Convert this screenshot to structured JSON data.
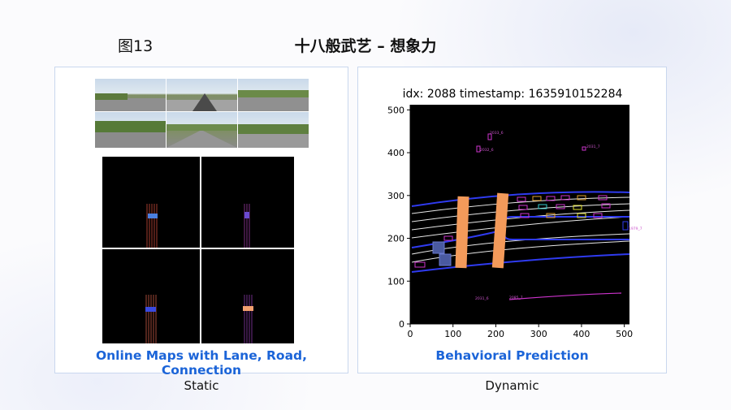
{
  "header": {
    "figure_label": "图13",
    "title": "十八般武艺 – 想象力"
  },
  "left_panel": {
    "caption": "Online Maps with Lane, Road, Connection",
    "footer": "Static"
  },
  "right_panel": {
    "caption": "Behavioral Prediction",
    "footer": "Dynamic",
    "plot_title": "idx: 2088   timestamp: 1635910152284",
    "x_ticks": [
      "0",
      "100",
      "200",
      "300",
      "400",
      "500"
    ],
    "y_ticks": [
      "0",
      "100",
      "200",
      "300",
      "400",
      "500"
    ],
    "xlim": [
      0,
      512
    ],
    "ylim": [
      0,
      512
    ],
    "agent_labels": [
      "2033_6",
      "2032_6",
      "2031_7",
      "1979_7",
      "2031_6",
      "2085_7"
    ]
  },
  "colors": {
    "caption_blue": "#1b64d8",
    "lane_blue": "#2f3bf0",
    "agent_orange": "#f39a5a",
    "agent_magenta": "#cc33cc"
  }
}
